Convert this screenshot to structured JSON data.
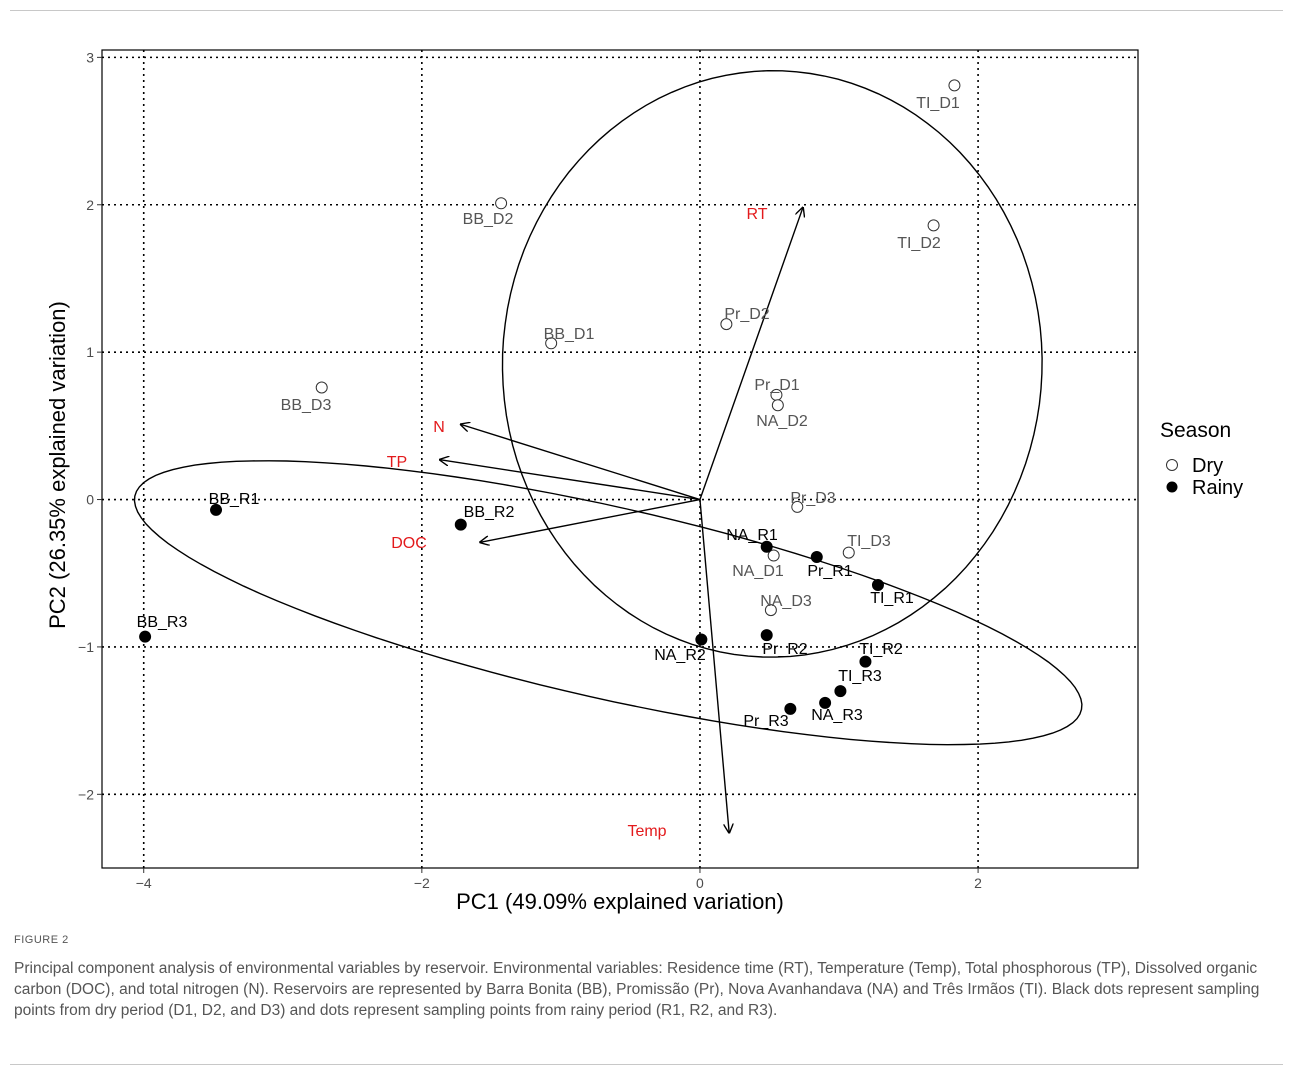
{
  "figure": {
    "label": "FIGURE 2",
    "caption": "Principal component analysis of environmental variables by reservoir. Environmental variables: Residence time (RT), Temperature (Temp), Total phosphorous (TP), Dissolved organic carbon (DOC), and total nitrogen (N). Reservoirs are represented by Barra Bonita (BB), Promissão (Pr), Nova Avanhandava (NA) and Três Irmãos (TI). Black dots represent sampling points from dry period (D1, D2, and D3) and dots represent sampling points from rainy period (R1, R2, and R3)."
  },
  "chart_data": {
    "type": "scatter",
    "xlabel": "PC1 (49.09% explained variation)",
    "ylabel": "PC2 (26.35% explained variation)",
    "xlim": [
      -4.3,
      3.15
    ],
    "ylim": [
      -2.5,
      3.05
    ],
    "xticks": [
      -4,
      -2,
      0,
      2
    ],
    "yticks": [
      -2,
      -1,
      0,
      1,
      2,
      3
    ],
    "xtick_labels": [
      "−4",
      "−2",
      "0",
      "2"
    ],
    "ytick_labels": [
      "−2",
      "−1",
      "0",
      "1",
      "2",
      "3"
    ],
    "grid": "dotted, at major ticks",
    "legend": {
      "title": "Season",
      "position": "right",
      "entries": [
        {
          "label": "Dry",
          "marker": "open-circle"
        },
        {
          "label": "Rainy",
          "marker": "filled-circle"
        }
      ]
    },
    "colors": {
      "point": "#000000",
      "dry_label": "#555555",
      "rainy_label": "#000000",
      "loading_label": "#e31a1c"
    },
    "series": [
      {
        "name": "Dry",
        "points": [
          {
            "label": "TI_D1",
            "x": 1.83,
            "y": 2.81
          },
          {
            "label": "BB_D2",
            "x": -1.43,
            "y": 2.01
          },
          {
            "label": "TI_D2",
            "x": 1.68,
            "y": 1.86
          },
          {
            "label": "Pr_D2",
            "x": 0.19,
            "y": 1.19
          },
          {
            "label": "BB_D1",
            "x": -1.07,
            "y": 1.06
          },
          {
            "label": "BB_D3",
            "x": -2.72,
            "y": 0.76
          },
          {
            "label": "Pr_D1",
            "x": 0.55,
            "y": 0.71
          },
          {
            "label": "NA_D2",
            "x": 0.56,
            "y": 0.64
          },
          {
            "label": "Pr_D3",
            "x": 0.7,
            "y": -0.05
          },
          {
            "label": "NA_D1",
            "x": 0.53,
            "y": -0.38
          },
          {
            "label": "TI_D3",
            "x": 1.07,
            "y": -0.36
          },
          {
            "label": "NA_D3",
            "x": 0.51,
            "y": -0.75
          }
        ]
      },
      {
        "name": "Rainy",
        "points": [
          {
            "label": "BB_R1",
            "x": -3.48,
            "y": -0.07
          },
          {
            "label": "BB_R2",
            "x": -1.72,
            "y": -0.17
          },
          {
            "label": "NA_R1",
            "x": 0.48,
            "y": -0.32
          },
          {
            "label": "Pr_R1",
            "x": 0.84,
            "y": -0.39
          },
          {
            "label": "TI_R1",
            "x": 1.28,
            "y": -0.58
          },
          {
            "label": "BB_R3",
            "x": -3.99,
            "y": -0.93
          },
          {
            "label": "NA_R2",
            "x": 0.01,
            "y": -0.95
          },
          {
            "label": "Pr_R2",
            "x": 0.48,
            "y": -0.92
          },
          {
            "label": "TI_R2",
            "x": 1.19,
            "y": -1.1
          },
          {
            "label": "TI_R3",
            "x": 1.01,
            "y": -1.3
          },
          {
            "label": "NA_R3",
            "x": 0.9,
            "y": -1.38
          },
          {
            "label": "Pr_R3",
            "x": 0.65,
            "y": -1.42
          }
        ]
      }
    ],
    "loadings": [
      {
        "name": "RT",
        "x": 0.74,
        "y": 1.98
      },
      {
        "name": "N",
        "x": -1.72,
        "y": 0.51
      },
      {
        "name": "TP",
        "x": -1.87,
        "y": 0.27
      },
      {
        "name": "DOC",
        "x": -1.58,
        "y": -0.29
      },
      {
        "name": "Temp",
        "x": 0.21,
        "y": -2.26
      }
    ],
    "ellipses": [
      {
        "group": "Dry",
        "center": [
          0.52,
          0.92
        ],
        "radii": [
          1.99,
          1.94
        ],
        "rotation_deg": -95
      },
      {
        "group": "Rainy",
        "center": [
          -0.66,
          -0.7
        ],
        "radii": [
          3.48,
          0.65
        ],
        "rotation_deg": -12
      }
    ]
  }
}
